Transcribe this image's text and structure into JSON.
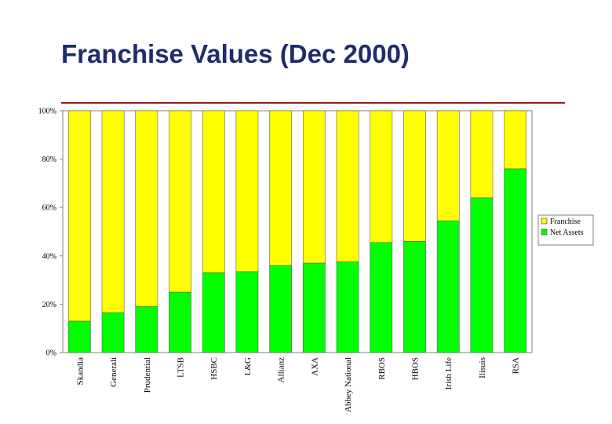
{
  "slide": {
    "title": "Franchise Values (Dec 2000)"
  },
  "chart_data": {
    "type": "bar",
    "stacked": true,
    "title": "",
    "xlabel": "",
    "ylabel": "",
    "ylim": [
      0,
      100
    ],
    "y_ticks": [
      "0%",
      "20%",
      "40%",
      "60%",
      "80%",
      "100%"
    ],
    "grid": false,
    "legend_position": "right",
    "categories": [
      "Skandia",
      "Generali",
      "Prudential",
      "LTSB",
      "HSBC",
      "L&G",
      "Allianz",
      "AXA",
      "Abbey National",
      "RBOS",
      "HBOS",
      "Irish Life",
      "Ilisuis",
      "RSA"
    ],
    "series": [
      {
        "name": "Net Assets",
        "color": "#00ff00",
        "values": [
          13,
          16.5,
          19,
          25,
          33,
          33.5,
          36,
          37,
          37.5,
          45.5,
          46,
          54.5,
          64,
          76
        ]
      },
      {
        "name": "Franchise",
        "color": "#ffff00",
        "values": [
          87,
          83.5,
          81,
          75,
          67,
          66.5,
          64,
          63,
          62.5,
          54.5,
          54,
          45.5,
          36,
          24
        ]
      }
    ],
    "legend": [
      "Franchise",
      "Net Assets"
    ]
  }
}
